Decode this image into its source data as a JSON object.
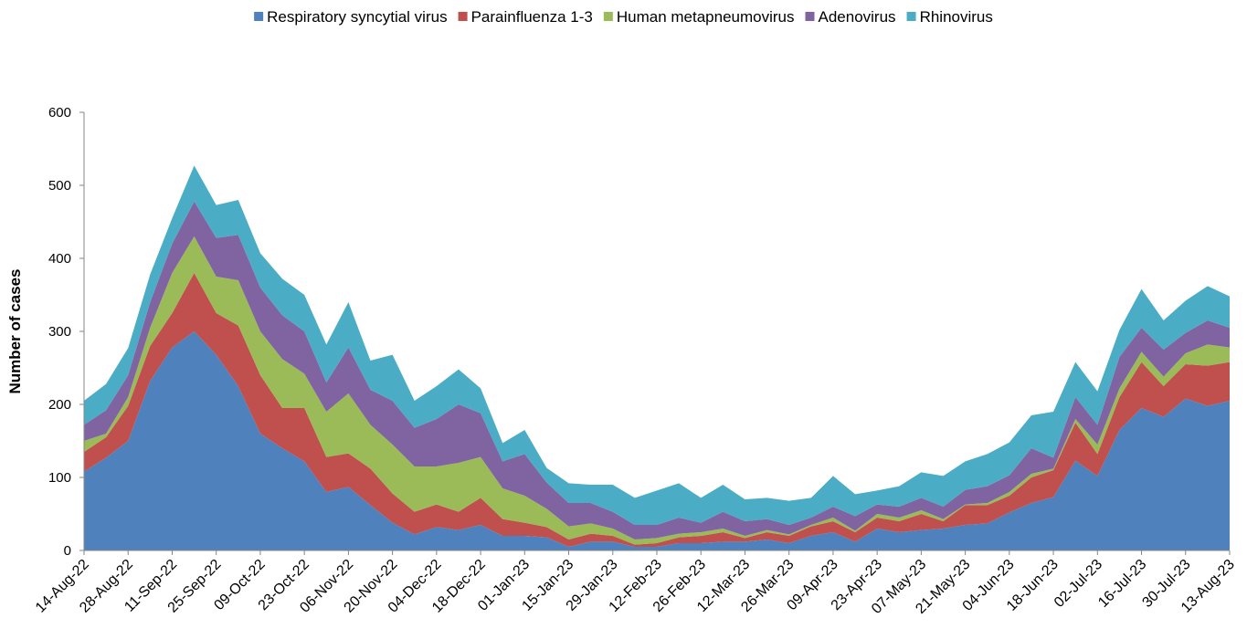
{
  "chart_data": {
    "type": "stacked-area",
    "y_label": "Number of cases",
    "categories": [
      "14-Aug-22",
      null,
      "28-Aug-22",
      null,
      "11-Sep-22",
      null,
      "25-Sep-22",
      null,
      "09-Oct-22",
      null,
      "23-Oct-22",
      null,
      "06-Nov-22",
      null,
      "20-Nov-22",
      null,
      "04-Dec-22",
      null,
      "18-Dec-22",
      null,
      "01-Jan-23",
      null,
      "15-Jan-23",
      null,
      "29-Jan-23",
      null,
      "12-Feb-23",
      null,
      "26-Feb-23",
      null,
      "12-Mar-23",
      null,
      "26-Mar-23",
      null,
      "09-Apr-23",
      null,
      "23-Apr-23",
      null,
      "07-May-23",
      null,
      "21-May-23",
      null,
      "04-Jun-23",
      null,
      "18-Jun-23",
      null,
      "02-Jul-23",
      null,
      "16-Jul-23",
      null,
      "30-Jul-23",
      null,
      "13-Aug-23"
    ],
    "series": [
      {
        "name": "Respiratory syncytial virus",
        "color": "#4f81bd",
        "values": [
          108,
          127,
          150,
          232,
          278,
          300,
          268,
          225,
          160,
          140,
          122,
          80,
          87,
          62,
          38,
          22,
          32,
          28,
          35,
          20,
          20,
          18,
          5,
          12,
          12,
          5,
          5,
          10,
          10,
          12,
          12,
          15,
          10,
          20,
          25,
          12,
          30,
          25,
          28,
          30,
          35,
          37,
          52,
          65,
          73,
          123,
          102,
          165,
          195,
          183,
          208,
          198,
          205
        ]
      },
      {
        "name": "Parainfluenza 1-3",
        "color": "#c0504d",
        "values": [
          27,
          28,
          48,
          48,
          47,
          80,
          57,
          83,
          80,
          55,
          73,
          48,
          46,
          50,
          40,
          31,
          31,
          25,
          37,
          23,
          18,
          14,
          10,
          11,
          8,
          3,
          5,
          8,
          10,
          13,
          5,
          10,
          10,
          13,
          15,
          13,
          15,
          15,
          22,
          10,
          27,
          25,
          23,
          35,
          37,
          52,
          30,
          45,
          63,
          42,
          47,
          55,
          53
        ]
      },
      {
        "name": "Human metapneumovirus",
        "color": "#9bbb59",
        "values": [
          15,
          5,
          12,
          25,
          55,
          50,
          50,
          62,
          60,
          67,
          47,
          62,
          82,
          60,
          67,
          62,
          52,
          67,
          56,
          42,
          37,
          25,
          18,
          14,
          10,
          7,
          7,
          5,
          5,
          5,
          3,
          3,
          2,
          2,
          5,
          2,
          5,
          5,
          5,
          3,
          1,
          3,
          5,
          5,
          2,
          5,
          13,
          12,
          14,
          13,
          15,
          29,
          20
        ]
      },
      {
        "name": "Adenovirus",
        "color": "#8064a2",
        "values": [
          22,
          32,
          30,
          35,
          40,
          48,
          53,
          62,
          60,
          60,
          58,
          40,
          63,
          48,
          60,
          53,
          65,
          80,
          60,
          37,
          57,
          36,
          32,
          28,
          23,
          20,
          18,
          22,
          13,
          23,
          20,
          15,
          13,
          10,
          15,
          20,
          13,
          15,
          17,
          17,
          20,
          23,
          23,
          35,
          15,
          30,
          27,
          43,
          33,
          37,
          28,
          33,
          27
        ]
      },
      {
        "name": "Rhinovirus",
        "color": "#4bacc6",
        "values": [
          33,
          36,
          37,
          38,
          35,
          49,
          45,
          48,
          47,
          50,
          50,
          52,
          62,
          40,
          63,
          37,
          45,
          48,
          34,
          25,
          33,
          20,
          27,
          25,
          37,
          37,
          47,
          47,
          34,
          37,
          30,
          29,
          33,
          27,
          42,
          30,
          19,
          28,
          35,
          42,
          39,
          44,
          45,
          45,
          63,
          48,
          46,
          37,
          53,
          40,
          44,
          47,
          43
        ]
      }
    ],
    "ylim": [
      0,
      600
    ],
    "yticks": [
      0,
      100,
      200,
      300,
      400,
      500,
      600
    ],
    "grid": false,
    "legend": "top"
  }
}
